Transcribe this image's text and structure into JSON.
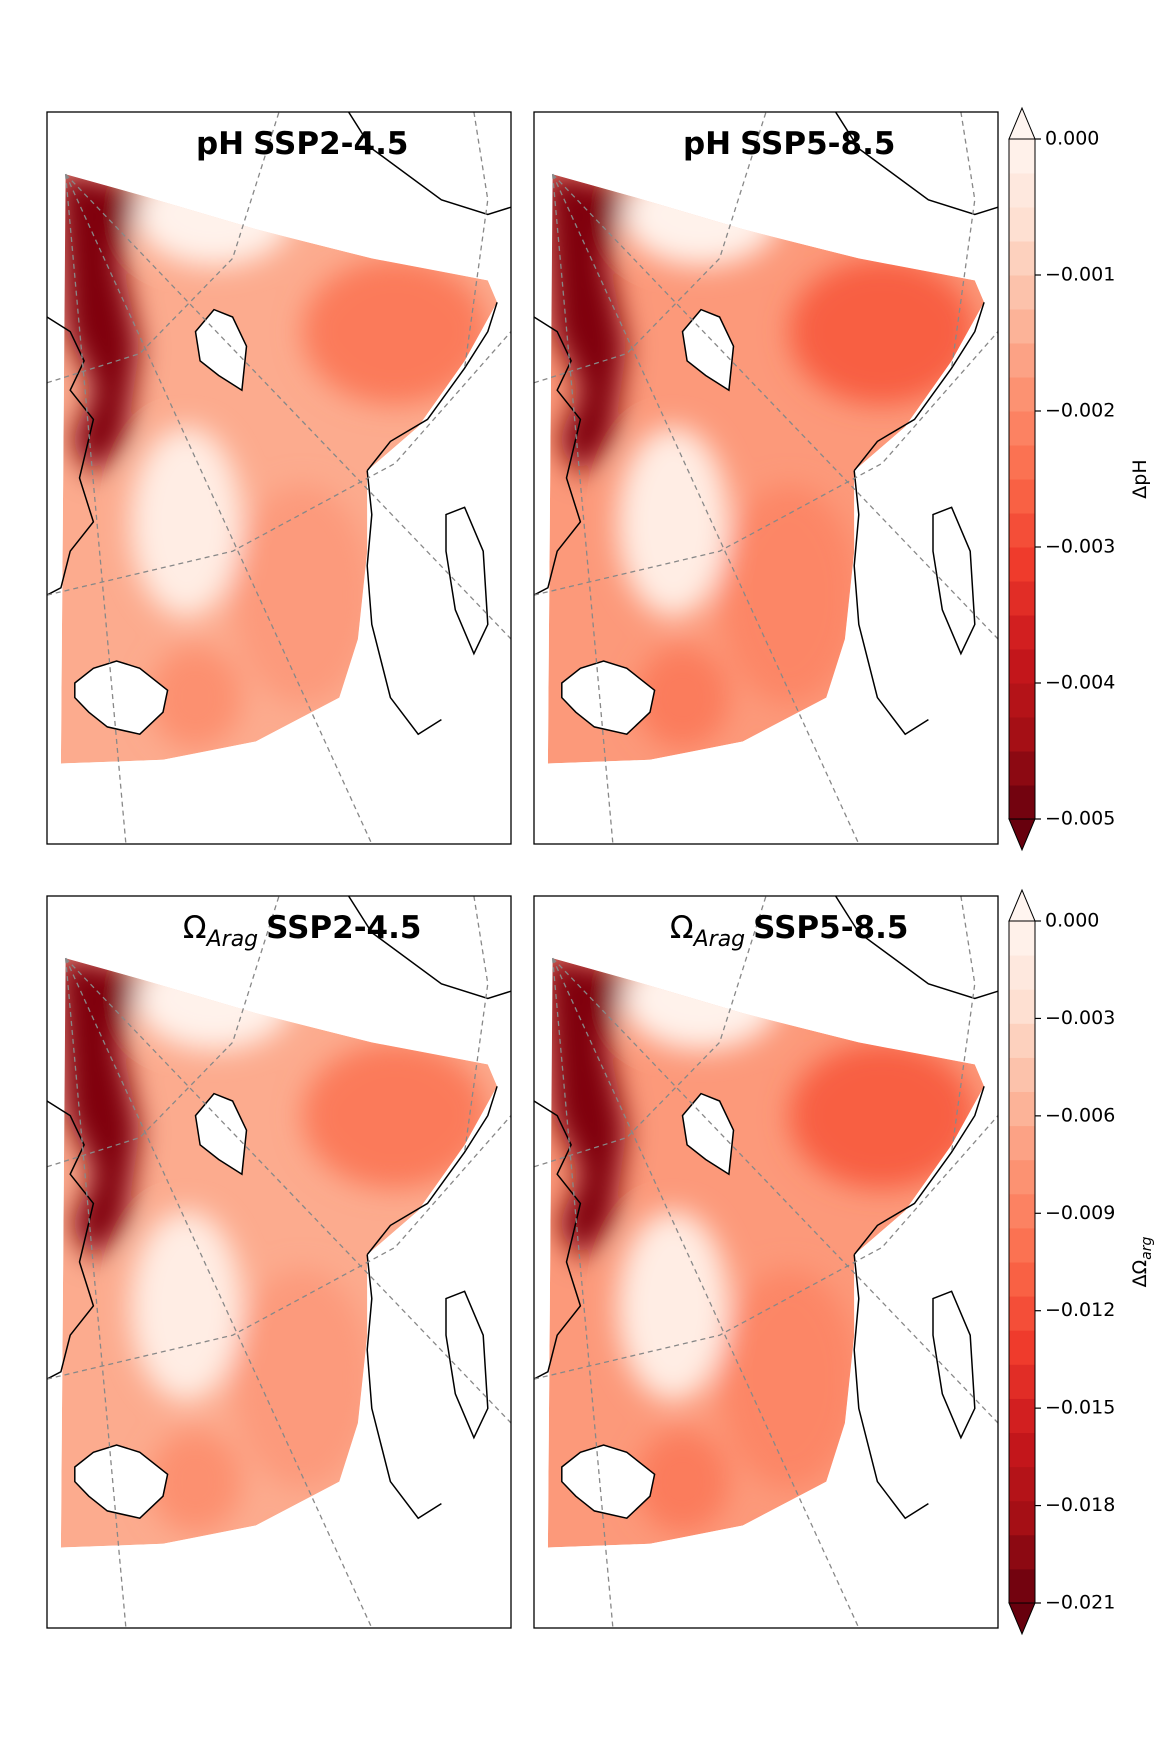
{
  "rows": [
    {
      "panels": [
        {
          "title": {
            "symbol": "pH",
            "scenario": "SSP2-4.5"
          }
        },
        {
          "title": {
            "symbol": "pH",
            "scenario": "SSP5-8.5"
          }
        }
      ],
      "colorbar": {
        "label": {
          "symbol": "ΔpH"
        },
        "lim": [
          -0.005,
          0
        ],
        "ticks": [
          {
            "value": 0,
            "label": "0.000"
          },
          {
            "value": -0.001,
            "label": "−0.001"
          },
          {
            "value": -0.002,
            "label": "−0.002"
          },
          {
            "value": -0.003,
            "label": "−0.003"
          },
          {
            "value": -0.004,
            "label": "−0.004"
          },
          {
            "value": -0.005,
            "label": "−0.005"
          }
        ]
      }
    },
    {
      "panels": [
        {
          "title": {
            "symbol": "Ω",
            "subscript": "Arag",
            "scenario": "SSP2-4.5"
          }
        },
        {
          "title": {
            "symbol": "Ω",
            "subscript": "Arag",
            "scenario": "SSP5-8.5"
          }
        }
      ],
      "colorbar": {
        "label": {
          "symbol": "ΔΩ",
          "subscript": "arg"
        },
        "lim": [
          -0.021,
          0
        ],
        "ticks": [
          {
            "value": 0,
            "label": "0.000"
          },
          {
            "value": -0.003,
            "label": "−0.003"
          },
          {
            "value": -0.006,
            "label": "−0.006"
          },
          {
            "value": -0.009,
            "label": "−0.009"
          },
          {
            "value": -0.012,
            "label": "−0.012"
          },
          {
            "value": -0.015,
            "label": "−0.015"
          },
          {
            "value": -0.018,
            "label": "−0.018"
          },
          {
            "value": -0.021,
            "label": "−0.021"
          }
        ]
      }
    }
  ],
  "colormap": [
    "#fff5f0",
    "#fee0d2",
    "#fcbba1",
    "#fc9272",
    "#fb6a4a",
    "#ef3b2c",
    "#cb181d",
    "#a50f15",
    "#67000d"
  ]
}
